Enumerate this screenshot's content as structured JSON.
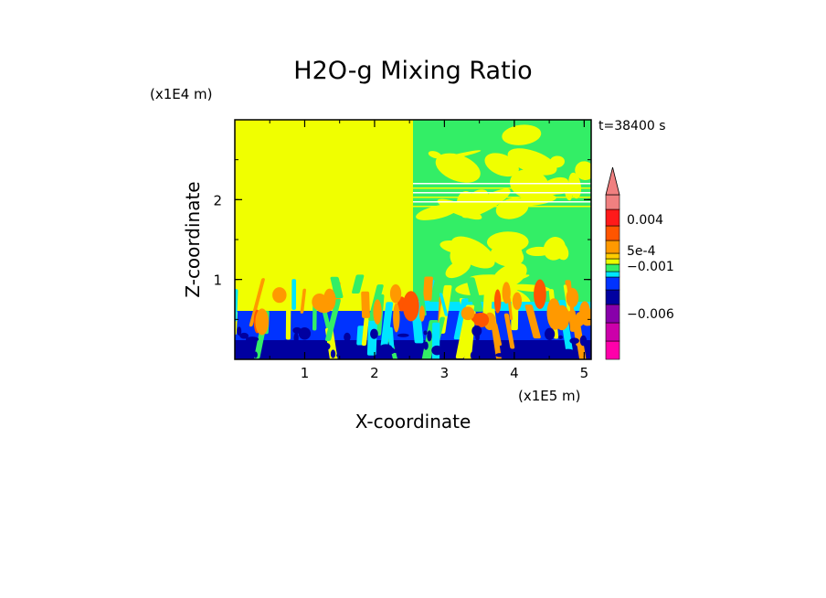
{
  "chart_data": {
    "type": "heatmap",
    "title": "H2O-g Mixing Ratio",
    "xlabel": "X-coordinate",
    "ylabel": "Z-coordinate",
    "x_unit": "(x1E5 m)",
    "y_unit": "(x1E4 m)",
    "time_label": "t=38400 s",
    "xlim": [
      0,
      5.1
    ],
    "ylim": [
      0,
      3
    ],
    "xticks": [
      "1",
      "2",
      "3",
      "4",
      "5"
    ],
    "yticks": [
      "1",
      "2"
    ],
    "colorbar": {
      "labels": [
        "0.004",
        "5e-4",
        "−0.001",
        "−0.006"
      ],
      "colors": [
        "#ff00aa",
        "#cc00aa",
        "#8800aa",
        "#0000a0",
        "#0033ff",
        "#00e5ff",
        "#33ee66",
        "#eaff00",
        "#ffcc00",
        "#ff9900",
        "#ff5500",
        "#ff1a1a",
        "#f08080"
      ],
      "extend_max": true
    },
    "regions": [
      {
        "name": "upper-left",
        "value_class": "yellow",
        "color": "#f0ff00"
      },
      {
        "name": "upper-right",
        "value_class": "green-yellow mix",
        "color": "#33ee66"
      },
      {
        "name": "boundary-layer",
        "value_class": "blue",
        "color": "#0033ff"
      },
      {
        "name": "convective-plumes",
        "value_class": "orange",
        "color": "#ff9900"
      }
    ]
  }
}
